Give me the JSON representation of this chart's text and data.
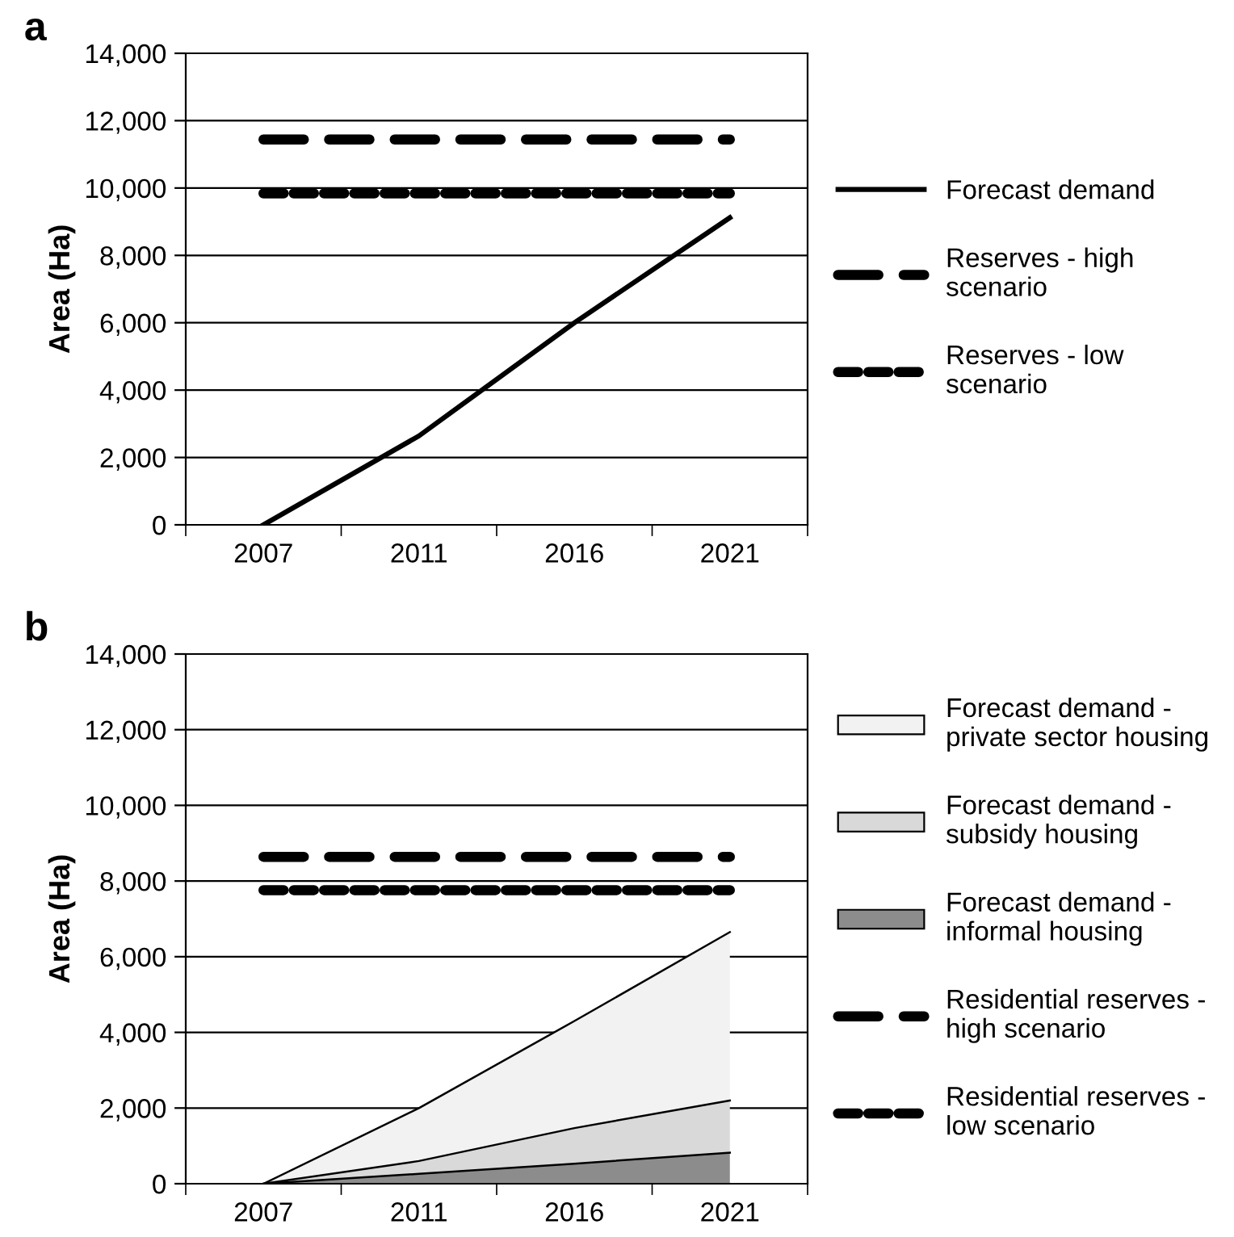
{
  "chart_data": [
    {
      "type": "line",
      "title": "a",
      "ylabel": "Area (Ha)",
      "categories": [
        "2007",
        "2011",
        "2016",
        "2021"
      ],
      "series": [
        {
          "name": "Forecast demand",
          "color": "#000000",
          "values": [
            0,
            2640,
            6000,
            9120
          ],
          "line_style": "solid"
        },
        {
          "name": "Reserves - high scenario",
          "color": "#000000",
          "values": [
            11440,
            11440,
            11440,
            11440
          ],
          "line_style": "dashed"
        },
        {
          "name": "Reserves - low scenario",
          "color": "#000000",
          "values": [
            9840,
            9840,
            9840,
            9840
          ],
          "line_style": "dotted"
        }
      ],
      "ylim": [
        0,
        14000
      ],
      "yticks": [
        {
          "value": 0,
          "label": "0"
        },
        {
          "value": 2000,
          "label": "2,000"
        },
        {
          "value": 4000,
          "label": "4,000"
        },
        {
          "value": 6000,
          "label": "6,000"
        },
        {
          "value": 8000,
          "label": "8,000"
        },
        {
          "value": 10000,
          "label": "10,000"
        },
        {
          "value": 12000,
          "label": "12,000"
        },
        {
          "value": 14000,
          "label": "14,000"
        }
      ],
      "grid": "y",
      "legend": "right",
      "marker": "none"
    },
    {
      "type": "area",
      "title": "b",
      "ylabel": "Area (Ha)",
      "categories": [
        "2007",
        "2011",
        "2016",
        "2021"
      ],
      "stacked": true,
      "series": [
        {
          "name": "Forecast demand - informal housing",
          "color": "#8c8c8c",
          "values": [
            0,
            260,
            530,
            820
          ]
        },
        {
          "name": "Forecast demand - subsidy housing",
          "color": "#d9d9d9",
          "values": [
            0,
            340,
            940,
            1380
          ]
        },
        {
          "name": "Forecast demand - private sector housing",
          "color": "#f2f2f2",
          "values": [
            0,
            1400,
            2830,
            4450
          ]
        },
        {
          "name": "Residential reserves - high scenario",
          "type": "line",
          "color": "#000000",
          "values": [
            8640,
            8640,
            8640,
            8640
          ],
          "line_style": "dashed"
        },
        {
          "name": "Residential reserves - low scenario",
          "type": "line",
          "color": "#000000",
          "values": [
            7760,
            7760,
            7760,
            7760
          ],
          "line_style": "dotted"
        }
      ],
      "ylim": [
        0,
        14000
      ],
      "yticks": [
        {
          "value": 0,
          "label": "0"
        },
        {
          "value": 2000,
          "label": "2,000"
        },
        {
          "value": 4000,
          "label": "4,000"
        },
        {
          "value": 6000,
          "label": "6,000"
        },
        {
          "value": 8000,
          "label": "8,000"
        },
        {
          "value": 10000,
          "label": "10,000"
        },
        {
          "value": 12000,
          "label": "12,000"
        },
        {
          "value": 14000,
          "label": "14,000"
        }
      ],
      "grid": "y",
      "legend": "right",
      "marker": "none"
    }
  ]
}
